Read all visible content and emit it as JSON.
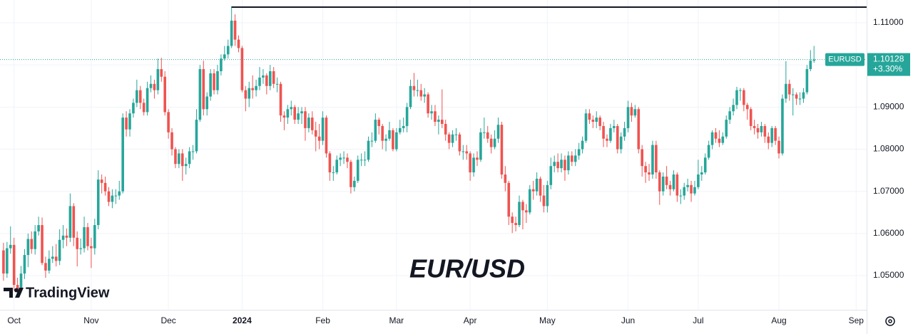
{
  "chart_data": {
    "type": "candlestick",
    "title": "EUR/USD",
    "brand": "TradingView",
    "xlim": [
      -4,
      243
    ],
    "xticks": [
      {
        "value": 0,
        "label": "Oct"
      },
      {
        "value": 22,
        "label": "Nov"
      },
      {
        "value": 44,
        "label": "Dec"
      },
      {
        "value": 65,
        "label": "2024"
      },
      {
        "value": 88,
        "label": "Feb"
      },
      {
        "value": 109,
        "label": "Mar"
      },
      {
        "value": 130,
        "label": "Apr"
      },
      {
        "value": 152,
        "label": "May"
      },
      {
        "value": 175,
        "label": "Jun"
      },
      {
        "value": 195,
        "label": "Jul"
      },
      {
        "value": 218,
        "label": "Aug"
      },
      {
        "value": 240,
        "label": "Sep"
      }
    ],
    "ylim": [
      1.0419,
      1.1154
    ],
    "yticks": [
      {
        "value": 1.05,
        "label": "1.05000"
      },
      {
        "value": 1.06,
        "label": "1.06000"
      },
      {
        "value": 1.07,
        "label": "1.07000"
      },
      {
        "value": 1.08,
        "label": "1.08000"
      },
      {
        "value": 1.09,
        "label": "1.09000"
      },
      {
        "value": 1.1,
        "label": "1.10000"
      },
      {
        "value": 1.11,
        "label": "1.11000"
      }
    ],
    "grid": true,
    "hline": 1.1137,
    "last_price": 1.10128,
    "change": {
      "value": 3.3,
      "label": "+3.30%"
    },
    "series": [
      {
        "name": "EURUSD",
        "up_color": "#26a69a",
        "down_color": "#ef5350",
        "open": [
          1.056,
          1.0505,
          1.0565,
          1.0573,
          1.0478,
          1.0468,
          1.0505,
          1.0549,
          1.0587,
          1.0563,
          1.0605,
          1.062,
          1.053,
          1.0512,
          1.054,
          1.0545,
          1.0535,
          1.0585,
          1.0595,
          1.059,
          1.0665,
          1.059,
          1.0563,
          1.0565,
          1.0615,
          1.057,
          1.0565,
          1.062,
          1.0728,
          1.072,
          1.07,
          1.0675,
          1.069,
          1.069,
          1.07,
          1.0875,
          1.0847,
          1.0885,
          1.091,
          1.094,
          1.091,
          1.0888,
          1.0945,
          1.0955,
          1.094,
          1.099,
          1.0972,
          1.0888,
          1.084,
          1.08,
          1.0765,
          1.079,
          1.076,
          1.0765,
          1.0795,
          1.0795,
          1.087,
          1.099,
          1.0895,
          1.0925,
          1.098,
          1.094,
          1.0985,
          1.1015,
          1.1025,
          1.1045,
          1.1105,
          1.106,
          1.104,
          1.094,
          1.092,
          1.0945,
          1.094,
          1.095,
          1.097,
          1.0975,
          1.095,
          1.0985,
          1.0955,
          1.0955,
          1.088,
          1.0875,
          1.0895,
          1.09,
          1.087,
          1.0885,
          1.089,
          1.085,
          1.0875,
          1.0845,
          1.083,
          1.082,
          1.0875,
          1.079,
          1.0745,
          1.0745,
          1.0775,
          1.078,
          1.078,
          1.077,
          1.071,
          1.0725,
          1.0775,
          1.0775,
          1.0775,
          1.082,
          1.082,
          1.087,
          1.0855,
          1.082,
          1.0825,
          1.0845,
          1.08,
          1.084,
          1.085,
          1.0855,
          1.09,
          1.095,
          1.094,
          1.094,
          1.0925,
          1.093,
          1.0885,
          1.089,
          1.0865,
          1.087,
          1.086,
          1.0835,
          1.0815,
          1.0835,
          1.0835,
          1.0795,
          1.0795,
          1.079,
          1.0745,
          1.078,
          1.0775,
          1.084,
          1.084,
          1.0825,
          1.0805,
          1.0825,
          1.0858,
          1.074,
          1.072,
          1.064,
          1.0625,
          1.062,
          1.0675,
          1.0655,
          1.065,
          1.0705,
          1.07,
          1.073,
          1.069,
          1.0665,
          1.0715,
          1.076,
          1.077,
          1.0755,
          1.0775,
          1.075,
          1.0785,
          1.077,
          1.0785,
          1.08,
          1.082,
          1.0885,
          1.087,
          1.0865,
          1.0875,
          1.0855,
          1.0825,
          1.082,
          1.085,
          1.0855,
          1.08,
          1.083,
          1.085,
          1.09,
          1.088,
          1.0895,
          1.08,
          1.076,
          1.0745,
          1.074,
          1.081,
          1.0745,
          1.07,
          1.0735,
          1.0715,
          1.0705,
          1.074,
          1.069,
          1.069,
          1.071,
          1.0715,
          1.0695,
          1.071,
          1.074,
          1.0745,
          1.078,
          1.081,
          1.084,
          1.0825,
          1.0815,
          1.083,
          1.087,
          1.089,
          1.0905,
          1.094,
          1.094,
          1.0905,
          1.0895,
          1.0855,
          1.085,
          1.084,
          1.0855,
          1.083,
          1.0815,
          1.085,
          1.082,
          1.079,
          1.092,
          1.0955,
          1.093,
          1.093,
          1.092,
          1.092,
          1.0935,
          1.099,
          1.101
        ],
        "high": [
          1.0578,
          1.058,
          1.0617,
          1.059,
          1.0495,
          1.0523,
          1.0563,
          1.06,
          1.0605,
          1.062,
          1.064,
          1.0638,
          1.0545,
          1.056,
          1.057,
          1.0575,
          1.061,
          1.062,
          1.0612,
          1.0695,
          1.0672,
          1.0605,
          1.0588,
          1.064,
          1.0625,
          1.059,
          1.0635,
          1.075,
          1.074,
          1.0735,
          1.071,
          1.0705,
          1.0705,
          1.0725,
          1.0885,
          1.089,
          1.0895,
          1.092,
          1.0965,
          1.095,
          1.092,
          1.096,
          1.0975,
          1.0965,
          1.1015,
          1.1017,
          1.0985,
          1.0895,
          1.085,
          1.0805,
          1.08,
          1.08,
          1.078,
          1.0805,
          1.081,
          1.0895,
          1.1,
          1.101,
          1.0935,
          1.099,
          1.099,
          1.1,
          1.1025,
          1.1045,
          1.106,
          1.1139,
          1.112,
          1.107,
          1.1045,
          1.095,
          1.096,
          1.0975,
          1.0965,
          1.0995,
          1.099,
          1.098,
          1.1,
          1.0995,
          1.097,
          1.096,
          1.089,
          1.0905,
          1.0915,
          1.0905,
          1.09,
          1.09,
          1.09,
          1.0885,
          1.089,
          1.0865,
          1.086,
          1.089,
          1.088,
          1.0795,
          1.076,
          1.0785,
          1.079,
          1.0795,
          1.079,
          1.0775,
          1.0735,
          1.0785,
          1.079,
          1.0795,
          1.083,
          1.084,
          1.0885,
          1.0875,
          1.086,
          1.0835,
          1.0865,
          1.085,
          1.085,
          1.087,
          1.0875,
          1.091,
          1.0965,
          1.0981,
          1.0965,
          1.0955,
          1.0945,
          1.0935,
          1.0905,
          1.0905,
          1.088,
          1.0942,
          1.087,
          1.084,
          1.0845,
          1.085,
          1.084,
          1.081,
          1.081,
          1.0795,
          1.079,
          1.0795,
          1.085,
          1.0875,
          1.0855,
          1.0835,
          1.0845,
          1.0875,
          1.0865,
          1.076,
          1.0725,
          1.065,
          1.064,
          1.069,
          1.068,
          1.067,
          1.0715,
          1.0725,
          1.0745,
          1.0735,
          1.0715,
          1.0725,
          1.078,
          1.0785,
          1.079,
          1.079,
          1.0785,
          1.0795,
          1.0795,
          1.08,
          1.0815,
          1.083,
          1.0895,
          1.0895,
          1.088,
          1.089,
          1.088,
          1.0865,
          1.0835,
          1.086,
          1.087,
          1.086,
          1.084,
          1.0865,
          1.0915,
          1.091,
          1.0905,
          1.09,
          1.081,
          1.077,
          1.0765,
          1.082,
          1.082,
          1.075,
          1.0745,
          1.076,
          1.0725,
          1.075,
          1.0745,
          1.0705,
          1.072,
          1.073,
          1.0725,
          1.0725,
          1.0775,
          1.076,
          1.079,
          1.082,
          1.0845,
          1.085,
          1.0845,
          1.084,
          1.088,
          1.09,
          1.092,
          1.0948,
          1.0945,
          1.0945,
          1.091,
          1.09,
          1.087,
          1.086,
          1.0865,
          1.086,
          1.084,
          1.0855,
          1.0855,
          1.083,
          1.093,
          1.1009,
          1.0965,
          1.0945,
          1.0935,
          1.0935,
          1.0945,
          1.1,
          1.1035,
          1.1045
        ],
        "low": [
          1.0488,
          1.0495,
          1.0552,
          1.0465,
          1.0448,
          1.046,
          1.0492,
          1.052,
          1.0552,
          1.055,
          1.0595,
          1.0525,
          1.0495,
          1.0505,
          1.053,
          1.0522,
          1.0525,
          1.0565,
          1.057,
          1.058,
          1.057,
          1.0522,
          1.055,
          1.0555,
          1.056,
          1.0518,
          1.055,
          1.061,
          1.0695,
          1.069,
          1.0665,
          1.066,
          1.067,
          1.068,
          1.0695,
          1.083,
          1.083,
          1.0875,
          1.09,
          1.0895,
          1.088,
          1.088,
          1.0935,
          1.092,
          1.093,
          1.096,
          1.088,
          1.0825,
          1.0785,
          1.0755,
          1.0755,
          1.0725,
          1.074,
          1.0755,
          1.0775,
          1.079,
          1.0865,
          1.088,
          1.088,
          1.0915,
          1.093,
          1.093,
          1.0975,
          1.101,
          1.1015,
          1.104,
          1.1045,
          1.103,
          1.0935,
          1.089,
          1.09,
          1.092,
          1.0925,
          1.094,
          1.0955,
          1.093,
          1.094,
          1.0945,
          1.0935,
          1.0865,
          1.0845,
          1.086,
          1.088,
          1.086,
          1.086,
          1.086,
          1.082,
          1.084,
          1.0835,
          1.0795,
          1.08,
          1.081,
          1.078,
          1.0725,
          1.0725,
          1.074,
          1.076,
          1.0765,
          1.0755,
          1.0695,
          1.07,
          1.072,
          1.076,
          1.076,
          1.077,
          1.0805,
          1.0815,
          1.0835,
          1.08,
          1.0795,
          1.082,
          1.0795,
          1.0795,
          1.0835,
          1.084,
          1.084,
          1.0895,
          1.0925,
          1.0925,
          1.0915,
          1.091,
          1.0875,
          1.087,
          1.0855,
          1.0835,
          1.085,
          1.082,
          1.08,
          1.0805,
          1.082,
          1.0785,
          1.0775,
          1.0775,
          1.0725,
          1.0735,
          1.076,
          1.077,
          1.0825,
          1.0815,
          1.079,
          1.08,
          1.0815,
          1.073,
          1.07,
          1.062,
          1.0601,
          1.0605,
          1.0615,
          1.061,
          1.0625,
          1.0645,
          1.068,
          1.069,
          1.0675,
          1.065,
          1.065,
          1.0705,
          1.0745,
          1.0745,
          1.0745,
          1.0725,
          1.074,
          1.076,
          1.076,
          1.0775,
          1.079,
          1.0815,
          1.086,
          1.085,
          1.085,
          1.0845,
          1.0805,
          1.0805,
          1.0815,
          1.084,
          1.079,
          1.079,
          1.082,
          1.084,
          1.0865,
          1.0875,
          1.079,
          1.0735,
          1.072,
          1.0725,
          1.073,
          1.073,
          1.0668,
          1.069,
          1.0705,
          1.069,
          1.07,
          1.0675,
          1.067,
          1.068,
          1.07,
          1.0675,
          1.069,
          1.0705,
          1.0725,
          1.074,
          1.0775,
          1.08,
          1.0815,
          1.0805,
          1.081,
          1.0825,
          1.086,
          1.088,
          1.0895,
          1.0915,
          1.089,
          1.087,
          1.0845,
          1.0835,
          1.0825,
          1.083,
          1.0815,
          1.08,
          1.0805,
          1.081,
          1.0778,
          1.0785,
          1.091,
          1.0915,
          1.088,
          1.0905,
          1.0905,
          1.091,
          1.093,
          1.0985,
          1.1005
        ],
        "close": [
          1.0505,
          1.0565,
          1.0573,
          1.0478,
          1.0468,
          1.0505,
          1.0549,
          1.0587,
          1.0563,
          1.0605,
          1.062,
          1.053,
          1.0512,
          1.054,
          1.0545,
          1.0535,
          1.0585,
          1.0595,
          1.059,
          1.0665,
          1.059,
          1.0563,
          1.0565,
          1.0615,
          1.057,
          1.0565,
          1.062,
          1.0728,
          1.072,
          1.07,
          1.0675,
          1.069,
          1.069,
          1.07,
          1.0875,
          1.0847,
          1.0885,
          1.091,
          1.094,
          1.091,
          1.0888,
          1.0945,
          1.0955,
          1.094,
          1.099,
          1.0972,
          1.0888,
          1.084,
          1.08,
          1.0765,
          1.079,
          1.076,
          1.0765,
          1.0795,
          1.0795,
          1.087,
          1.099,
          1.0895,
          1.0925,
          1.098,
          1.094,
          1.0985,
          1.1015,
          1.1025,
          1.1045,
          1.1105,
          1.106,
          1.104,
          1.094,
          1.092,
          1.0945,
          1.094,
          1.095,
          1.097,
          1.0975,
          1.095,
          1.0985,
          1.0955,
          1.0955,
          1.088,
          1.0875,
          1.0895,
          1.09,
          1.087,
          1.0885,
          1.089,
          1.085,
          1.0875,
          1.0845,
          1.083,
          1.082,
          1.0875,
          1.079,
          1.0745,
          1.0745,
          1.0775,
          1.078,
          1.078,
          1.077,
          1.071,
          1.0725,
          1.0775,
          1.0775,
          1.0775,
          1.082,
          1.082,
          1.087,
          1.0855,
          1.082,
          1.0825,
          1.0845,
          1.08,
          1.084,
          1.085,
          1.0855,
          1.09,
          1.095,
          1.094,
          1.094,
          1.0925,
          1.093,
          1.0885,
          1.089,
          1.0865,
          1.087,
          1.086,
          1.0835,
          1.0815,
          1.0835,
          1.0835,
          1.0795,
          1.0795,
          1.079,
          1.0745,
          1.078,
          1.0775,
          1.084,
          1.084,
          1.0825,
          1.0805,
          1.0825,
          1.0858,
          1.074,
          1.072,
          1.064,
          1.0625,
          1.062,
          1.0675,
          1.0655,
          1.065,
          1.0705,
          1.07,
          1.073,
          1.069,
          1.0665,
          1.0715,
          1.076,
          1.077,
          1.0755,
          1.0775,
          1.075,
          1.0785,
          1.077,
          1.0785,
          1.08,
          1.082,
          1.0885,
          1.087,
          1.0865,
          1.0875,
          1.0855,
          1.0825,
          1.082,
          1.085,
          1.0855,
          1.08,
          1.083,
          1.085,
          1.09,
          1.088,
          1.0895,
          1.08,
          1.076,
          1.0745,
          1.074,
          1.081,
          1.0745,
          1.07,
          1.0735,
          1.0715,
          1.0705,
          1.074,
          1.069,
          1.069,
          1.071,
          1.0715,
          1.0695,
          1.071,
          1.074,
          1.0745,
          1.078,
          1.081,
          1.084,
          1.0825,
          1.0815,
          1.083,
          1.087,
          1.089,
          1.0905,
          1.094,
          1.094,
          1.0905,
          1.0895,
          1.0855,
          1.085,
          1.084,
          1.0855,
          1.083,
          1.0815,
          1.085,
          1.082,
          1.079,
          1.092,
          1.0955,
          1.093,
          1.093,
          1.092,
          1.092,
          1.0935,
          1.099,
          1.101,
          1.10128
        ]
      }
    ]
  }
}
